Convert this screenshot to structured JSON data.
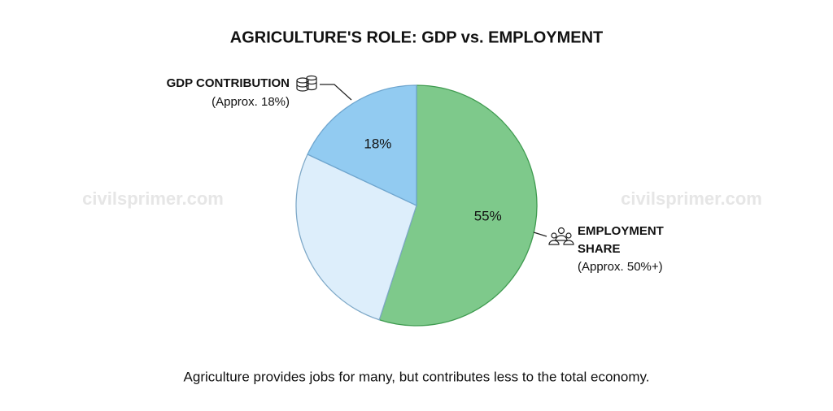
{
  "chart_data": {
    "type": "pie",
    "title": "AGRICULTURE'S ROLE: GDP vs. EMPLOYMENT",
    "caption": "Agriculture provides jobs for many, but contributes less to the total economy.",
    "values": [
      55,
      27,
      18
    ],
    "value_labels": [
      "55%",
      null,
      "18%"
    ],
    "colors": [
      "#7ec98b",
      "#ddeefb",
      "#92cbf1"
    ],
    "stroke_colors": [
      "#3f9b50",
      "#7fa9c8",
      "#6fa6cf"
    ],
    "annotations": [
      {
        "title": [
          "GDP CONTRIBUTION"
        ],
        "note": "(Approx. 18%)"
      },
      {
        "title": [
          "EMPLOYMENT",
          "SHARE"
        ],
        "note": "(Approx. 50%+)"
      }
    ],
    "watermark": "civilsprimer.com"
  }
}
